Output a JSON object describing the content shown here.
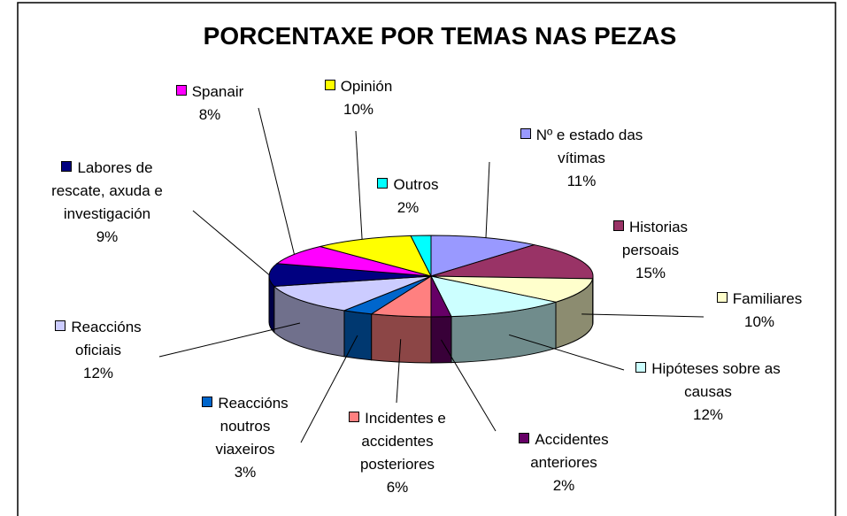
{
  "chart_data": {
    "type": "pie3d",
    "title": "PORCENTAXE POR TEMAS NAS PEZAS",
    "categories": [
      "Nº e estado das vítimas",
      "Historias persoais",
      "Familiares",
      "Hipóteses sobre as causas",
      "Accidentes anteriores",
      "Incidentes e accidentes posteriores",
      "Reaccións noutros viaxeiros",
      "Reaccións oficiais",
      "Labores de rescate, axuda e investigación",
      "Spanair",
      "Opinión",
      "Outros"
    ],
    "values": [
      11,
      15,
      10,
      12,
      2,
      6,
      3,
      12,
      9,
      8,
      10,
      2
    ],
    "value_labels": [
      "11%",
      "15%",
      "10%",
      "12%",
      "2%",
      "6%",
      "3%",
      "12%",
      "9%",
      "8%",
      "10%",
      "2%"
    ],
    "colors": [
      "#9999ff",
      "#993366",
      "#ffffcc",
      "#ccffff",
      "#660066",
      "#ff8080",
      "#0066cc",
      "#ccccff",
      "#000080",
      "#ff00ff",
      "#ffff00",
      "#00ffff"
    ]
  }
}
